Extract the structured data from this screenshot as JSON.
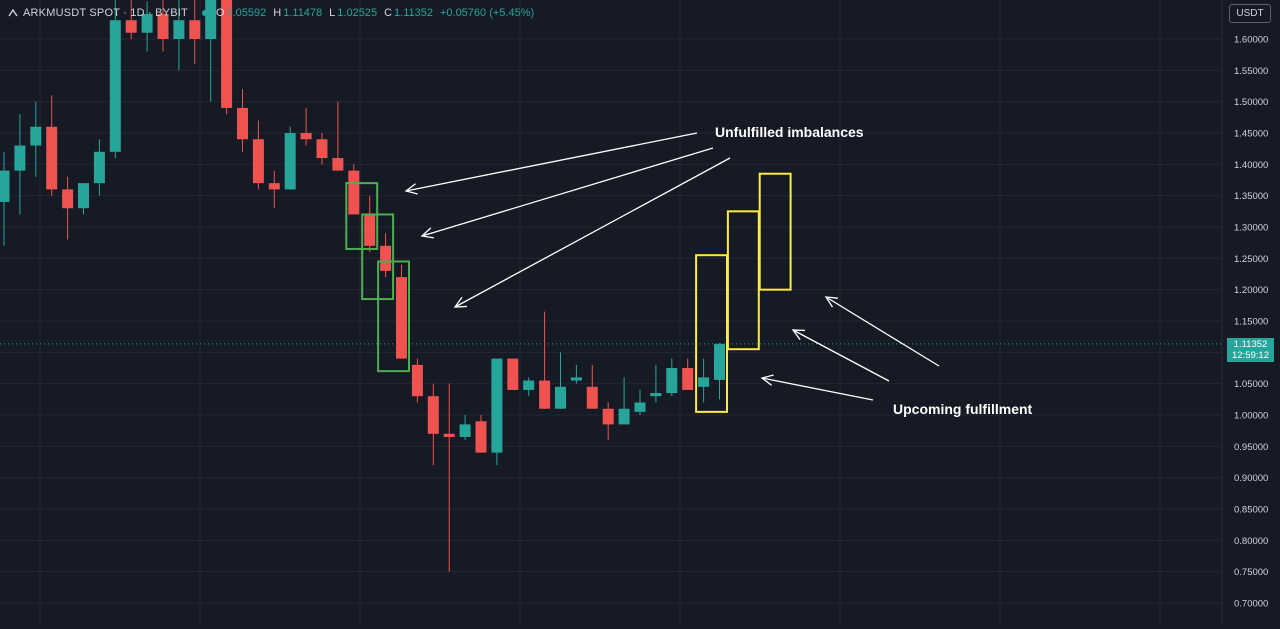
{
  "header": {
    "title": "ARKMUSDT SPOT · 1D · BYBIT",
    "ohlc": [
      {
        "key": "O",
        "value": "1.05592"
      },
      {
        "key": "H",
        "value": "1.11478"
      },
      {
        "key": "L",
        "value": "1.02525"
      },
      {
        "key": "C",
        "value": "1.11352"
      }
    ],
    "change": "+0.05760 (+5.45%)"
  },
  "currency_button": "USDT",
  "last_price": {
    "price": "1.11352",
    "countdown": "12:59:12"
  },
  "annotations": {
    "top": "Unfulfilled imbalances",
    "bottom": "Upcoming fulfillment"
  },
  "colors": {
    "background": "#161a25",
    "up": "#26a69a",
    "down": "#ef5350",
    "grid": "#242733",
    "imbalance_box": "#4caf50",
    "fulfillment_box": "#ffeb3b",
    "arrows": "#ffffff"
  },
  "chart_data": {
    "type": "candlestick",
    "y_axis": {
      "ticks": [
        "0.70000",
        "0.75000",
        "0.80000",
        "0.85000",
        "0.90000",
        "0.95000",
        "1.00000",
        "1.05000",
        "1.10000",
        "1.15000",
        "1.20000",
        "1.25000",
        "1.30000",
        "1.35000",
        "1.40000",
        "1.45000",
        "1.50000",
        "1.55000",
        "1.60000"
      ],
      "range": [
        0.68,
        1.65
      ],
      "position": "right"
    },
    "grid": true,
    "candles": [
      {
        "o": 1.34,
        "h": 1.42,
        "l": 1.27,
        "c": 1.39
      },
      {
        "o": 1.39,
        "h": 1.48,
        "l": 1.32,
        "c": 1.43
      },
      {
        "o": 1.43,
        "h": 1.5,
        "l": 1.38,
        "c": 1.46
      },
      {
        "o": 1.46,
        "h": 1.51,
        "l": 1.35,
        "c": 1.36
      },
      {
        "o": 1.36,
        "h": 1.38,
        "l": 1.28,
        "c": 1.33
      },
      {
        "o": 1.33,
        "h": 1.37,
        "l": 1.32,
        "c": 1.37
      },
      {
        "o": 1.37,
        "h": 1.44,
        "l": 1.35,
        "c": 1.42
      },
      {
        "o": 1.42,
        "h": 1.68,
        "l": 1.41,
        "c": 1.63
      },
      {
        "o": 1.63,
        "h": 1.7,
        "l": 1.6,
        "c": 1.61
      },
      {
        "o": 1.61,
        "h": 1.66,
        "l": 1.58,
        "c": 1.64
      },
      {
        "o": 1.64,
        "h": 1.68,
        "l": 1.58,
        "c": 1.6
      },
      {
        "o": 1.6,
        "h": 1.68,
        "l": 1.55,
        "c": 1.63
      },
      {
        "o": 1.63,
        "h": 1.67,
        "l": 1.56,
        "c": 1.6
      },
      {
        "o": 1.6,
        "h": 1.69,
        "l": 1.5,
        "c": 1.67
      },
      {
        "o": 1.67,
        "h": 1.7,
        "l": 1.48,
        "c": 1.49
      },
      {
        "o": 1.49,
        "h": 1.52,
        "l": 1.42,
        "c": 1.44
      },
      {
        "o": 1.44,
        "h": 1.47,
        "l": 1.36,
        "c": 1.37
      },
      {
        "o": 1.37,
        "h": 1.39,
        "l": 1.33,
        "c": 1.36
      },
      {
        "o": 1.36,
        "h": 1.46,
        "l": 1.36,
        "c": 1.45
      },
      {
        "o": 1.45,
        "h": 1.49,
        "l": 1.43,
        "c": 1.44
      },
      {
        "o": 1.44,
        "h": 1.45,
        "l": 1.4,
        "c": 1.41
      },
      {
        "o": 1.41,
        "h": 1.5,
        "l": 1.39,
        "c": 1.39
      },
      {
        "o": 1.39,
        "h": 1.4,
        "l": 1.32,
        "c": 1.32
      },
      {
        "o": 1.32,
        "h": 1.35,
        "l": 1.26,
        "c": 1.27
      },
      {
        "o": 1.27,
        "h": 1.29,
        "l": 1.22,
        "c": 1.23
      },
      {
        "o": 1.22,
        "h": 1.24,
        "l": 1.09,
        "c": 1.09
      },
      {
        "o": 1.08,
        "h": 1.09,
        "l": 1.02,
        "c": 1.03
      },
      {
        "o": 1.03,
        "h": 1.05,
        "l": 0.92,
        "c": 0.97
      },
      {
        "o": 0.97,
        "h": 1.05,
        "l": 0.75,
        "c": 0.965
      },
      {
        "o": 0.965,
        "h": 1.0,
        "l": 0.96,
        "c": 0.985
      },
      {
        "o": 0.99,
        "h": 1.0,
        "l": 0.94,
        "c": 0.94
      },
      {
        "o": 0.94,
        "h": 1.09,
        "l": 0.92,
        "c": 1.09
      },
      {
        "o": 1.09,
        "h": 1.09,
        "l": 1.04,
        "c": 1.04
      },
      {
        "o": 1.04,
        "h": 1.06,
        "l": 1.03,
        "c": 1.055
      },
      {
        "o": 1.055,
        "h": 1.165,
        "l": 1.01,
        "c": 1.01
      },
      {
        "o": 1.01,
        "h": 1.1,
        "l": 1.01,
        "c": 1.045
      },
      {
        "o": 1.055,
        "h": 1.08,
        "l": 1.05,
        "c": 1.06
      },
      {
        "o": 1.045,
        "h": 1.08,
        "l": 1.01,
        "c": 1.01
      },
      {
        "o": 1.01,
        "h": 1.02,
        "l": 0.96,
        "c": 0.985
      },
      {
        "o": 0.985,
        "h": 1.06,
        "l": 0.985,
        "c": 1.01
      },
      {
        "o": 1.005,
        "h": 1.04,
        "l": 1.0,
        "c": 1.02
      },
      {
        "o": 1.03,
        "h": 1.08,
        "l": 1.02,
        "c": 1.035
      },
      {
        "o": 1.035,
        "h": 1.09,
        "l": 1.03,
        "c": 1.075
      },
      {
        "o": 1.075,
        "h": 1.09,
        "l": 1.04,
        "c": 1.04
      },
      {
        "o": 1.045,
        "h": 1.09,
        "l": 1.02,
        "c": 1.06
      },
      {
        "o": 1.056,
        "h": 1.115,
        "l": 1.025,
        "c": 1.11352
      }
    ],
    "imbalance_boxes": [
      {
        "from": 22,
        "to": 23,
        "top": 1.37,
        "bottom": 1.265
      },
      {
        "from": 23,
        "to": 24,
        "top": 1.32,
        "bottom": 1.185
      },
      {
        "from": 24,
        "to": 25,
        "top": 1.245,
        "bottom": 1.07
      }
    ],
    "fulfillment_boxes": [
      {
        "from": 44,
        "to": 45,
        "top": 1.255,
        "bottom": 1.005
      },
      {
        "from": 46,
        "to": 47,
        "top": 1.325,
        "bottom": 1.105
      },
      {
        "from": 48,
        "to": 49,
        "top": 1.385,
        "bottom": 1.2
      }
    ]
  }
}
